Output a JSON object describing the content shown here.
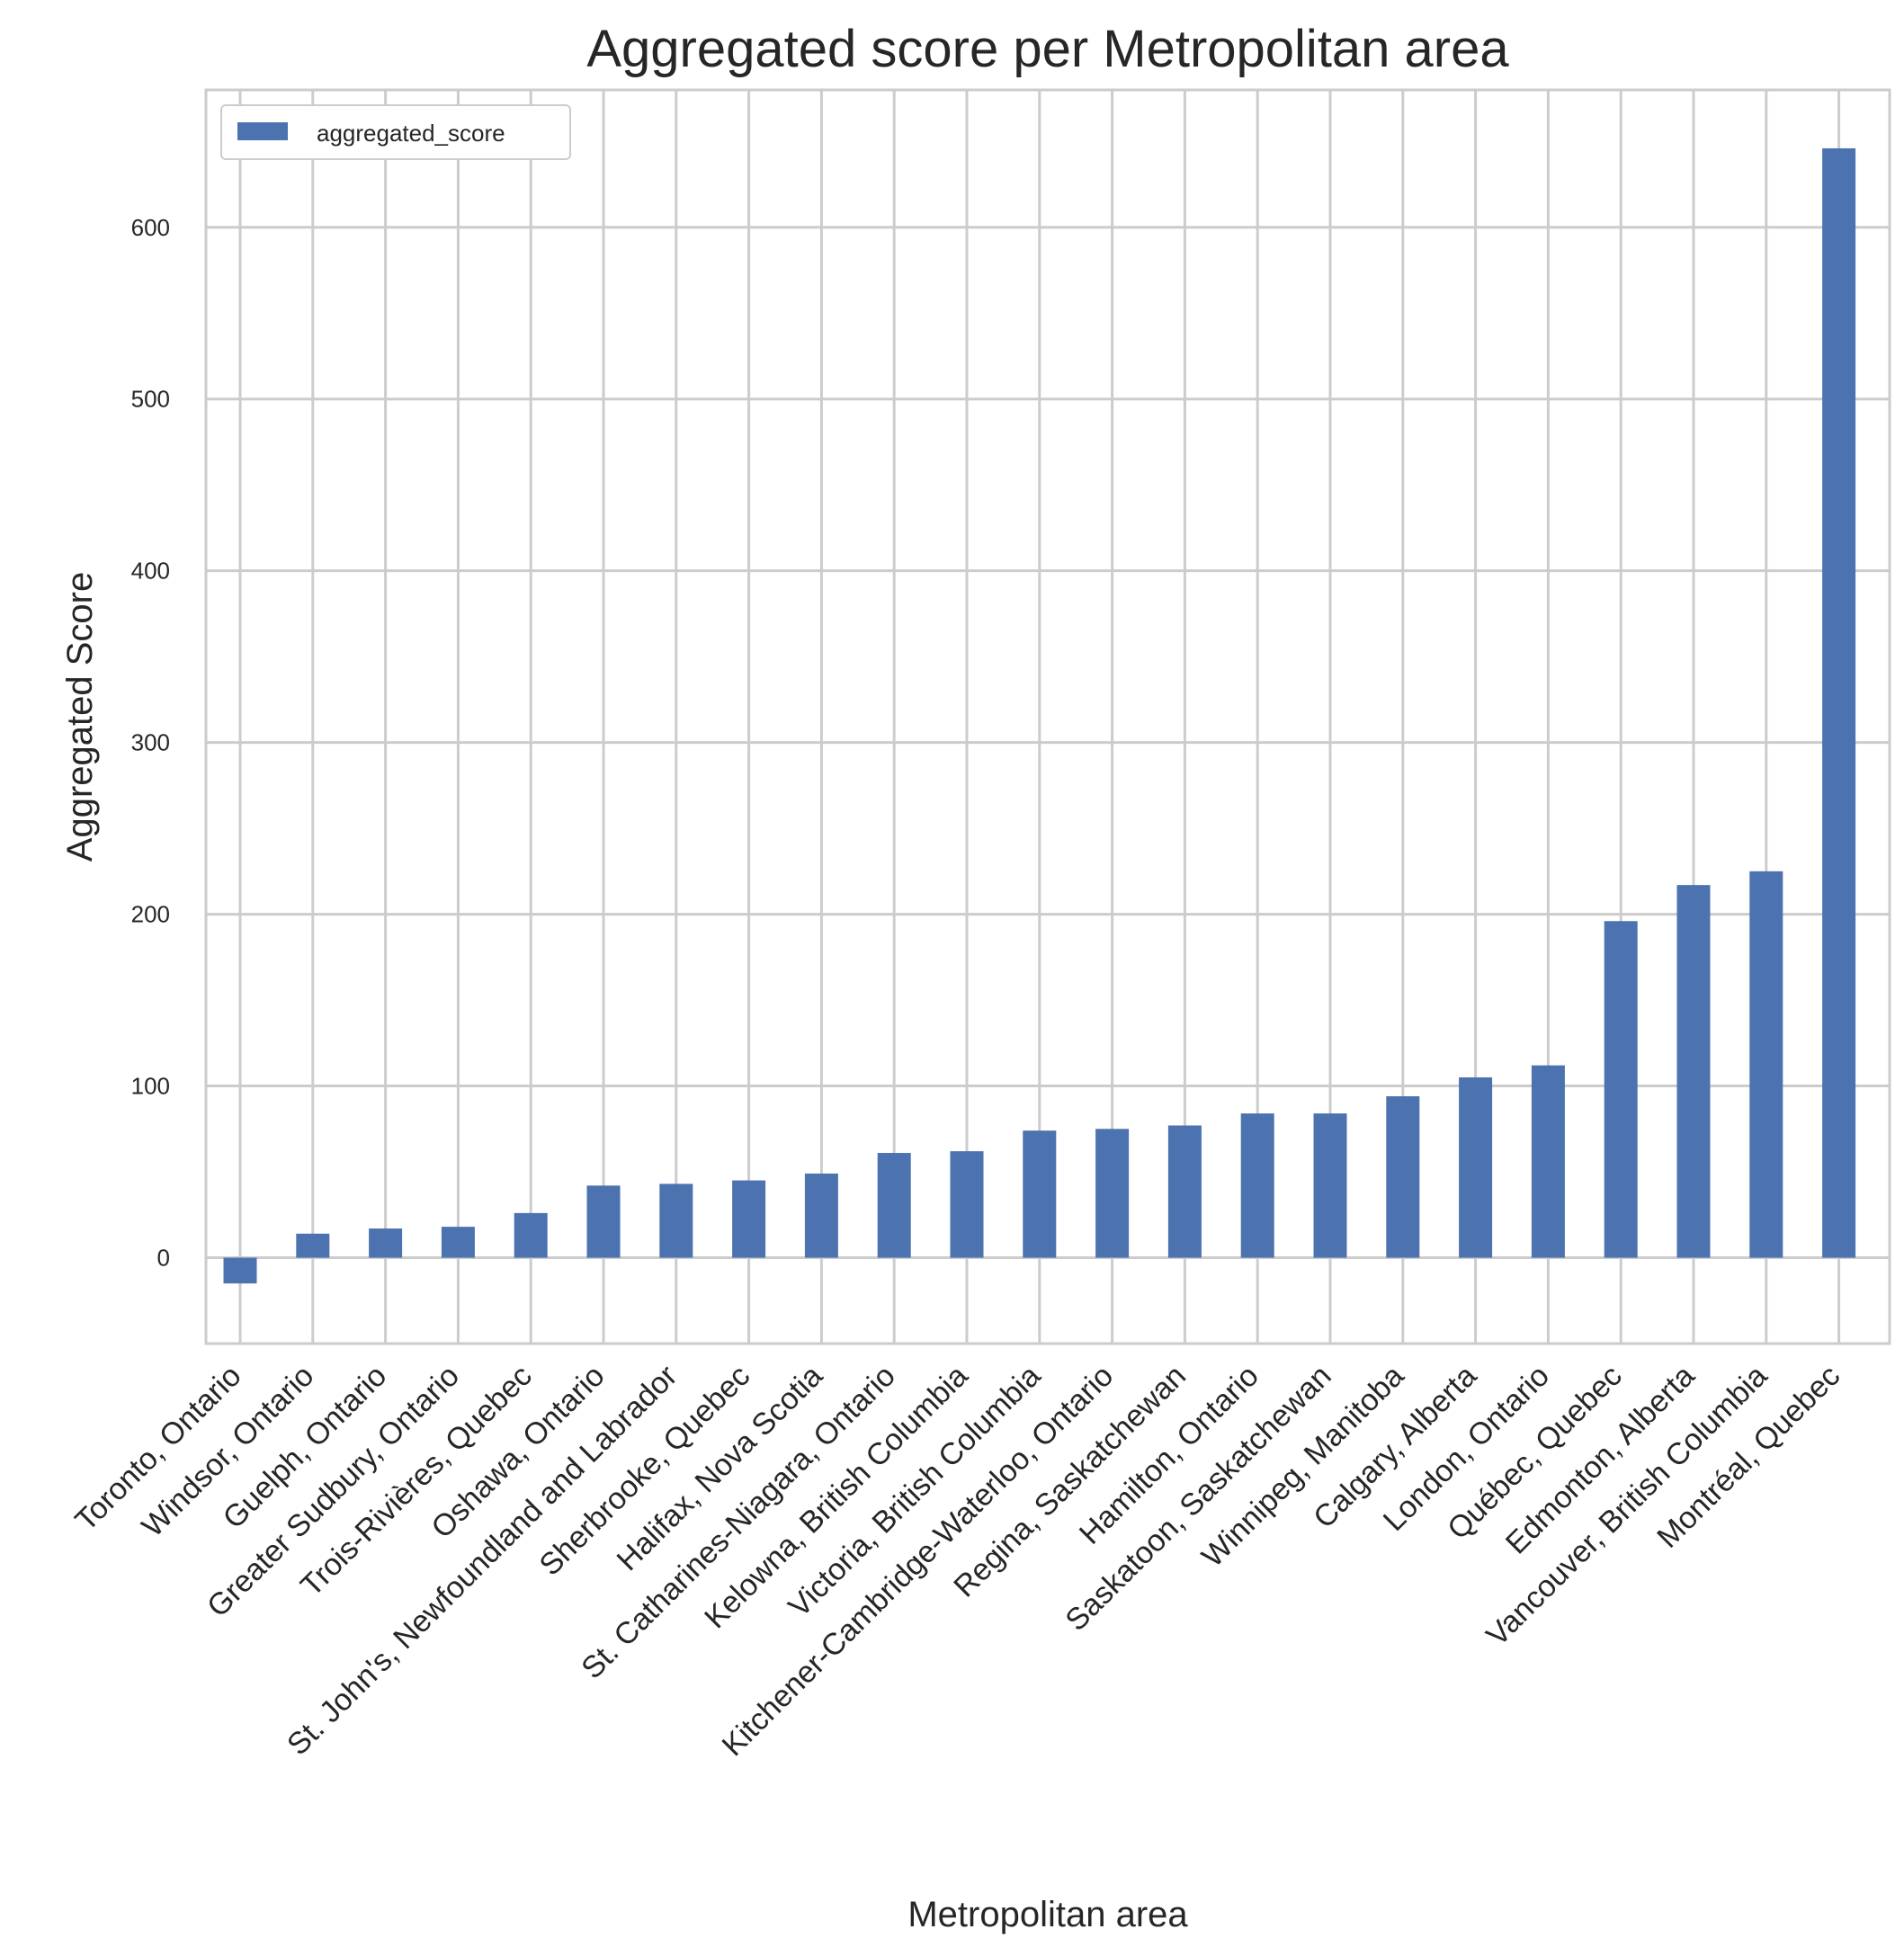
{
  "chart_data": {
    "type": "bar",
    "title": "Aggregated score per Metropolitan area",
    "xlabel": "Metropolitan area",
    "ylabel": "Aggregated Score",
    "ylim": [
      -50,
      680
    ],
    "yticks": [
      0,
      100,
      200,
      300,
      400,
      500,
      600
    ],
    "grid": true,
    "legend_position": "top-left",
    "categories": [
      "Toronto, Ontario",
      "Windsor, Ontario",
      "Guelph, Ontario",
      "Greater Sudbury, Ontario",
      "Trois-Rivières, Quebec",
      "Oshawa, Ontario",
      "St. John's, Newfoundland and Labrador",
      "Sherbrooke, Quebec",
      "Halifax, Nova Scotia",
      "St. Catharines-Niagara, Ontario",
      "Kelowna, British Columbia",
      "Victoria, British Columbia",
      "Kitchener-Cambridge-Waterloo, Ontario",
      "Regina, Saskatchewan",
      "Hamilton, Ontario",
      "Saskatoon, Saskatchewan",
      "Winnipeg, Manitoba",
      "Calgary, Alberta",
      "London, Ontario",
      "Québec, Quebec",
      "Edmonton, Alberta",
      "Vancouver, British Columbia",
      "Montréal, Quebec"
    ],
    "series": [
      {
        "name": "aggregated_score",
        "color": "#4c72b0",
        "values": [
          -15,
          14,
          17,
          18,
          26,
          42,
          43,
          45,
          49,
          61,
          62,
          74,
          75,
          77,
          84,
          84,
          94,
          105,
          112,
          196,
          217,
          225,
          646
        ]
      }
    ]
  }
}
